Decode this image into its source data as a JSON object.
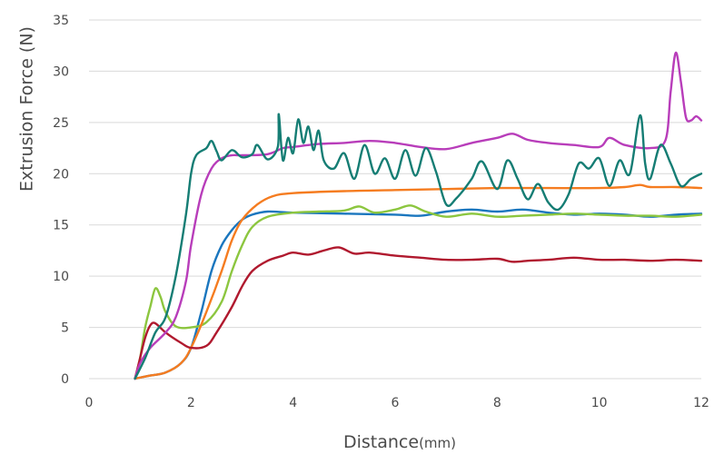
{
  "chart_data": {
    "type": "line",
    "xlabel": "Distance",
    "xlabel_unit": "(mm)",
    "ylabel": "Extrusion Force (N)",
    "xlim": [
      0,
      12
    ],
    "ylim": [
      0,
      35
    ],
    "xticks": [
      0,
      2,
      4,
      6,
      8,
      10,
      12
    ],
    "yticks": [
      0,
      5,
      10,
      15,
      20,
      25,
      30,
      35
    ],
    "grid": "horizontal",
    "legend": "none",
    "series": [
      {
        "color": "#1a76be",
        "points": [
          [
            0.9,
            0
          ],
          [
            1.2,
            0.3
          ],
          [
            1.5,
            0.6
          ],
          [
            1.8,
            1.5
          ],
          [
            2.0,
            3
          ],
          [
            2.2,
            6.5
          ],
          [
            2.4,
            10.5
          ],
          [
            2.6,
            13
          ],
          [
            2.8,
            14.5
          ],
          [
            3.0,
            15.5
          ],
          [
            3.2,
            16
          ],
          [
            3.5,
            16.3
          ],
          [
            4.0,
            16.2
          ],
          [
            5.0,
            16.1
          ],
          [
            6.0,
            16.0
          ],
          [
            6.5,
            15.9
          ],
          [
            7.0,
            16.3
          ],
          [
            7.5,
            16.5
          ],
          [
            8.0,
            16.3
          ],
          [
            8.5,
            16.5
          ],
          [
            9.0,
            16.2
          ],
          [
            9.5,
            16.0
          ],
          [
            10.0,
            16.1
          ],
          [
            10.5,
            16.0
          ],
          [
            11.0,
            15.8
          ],
          [
            11.5,
            16.0
          ],
          [
            12.0,
            16.1
          ]
        ]
      },
      {
        "color": "#8cc63f",
        "points": [
          [
            0.9,
            0
          ],
          [
            1.0,
            2
          ],
          [
            1.1,
            5
          ],
          [
            1.2,
            7
          ],
          [
            1.3,
            8.8
          ],
          [
            1.4,
            8
          ],
          [
            1.5,
            6.5
          ],
          [
            1.7,
            5.1
          ],
          [
            2.0,
            5
          ],
          [
            2.3,
            5.5
          ],
          [
            2.6,
            7.5
          ],
          [
            2.8,
            10.5
          ],
          [
            3.0,
            13
          ],
          [
            3.2,
            14.8
          ],
          [
            3.5,
            15.8
          ],
          [
            4.0,
            16.2
          ],
          [
            4.5,
            16.3
          ],
          [
            5.0,
            16.4
          ],
          [
            5.3,
            16.8
          ],
          [
            5.6,
            16.2
          ],
          [
            6.0,
            16.5
          ],
          [
            6.3,
            16.9
          ],
          [
            6.6,
            16.3
          ],
          [
            7.0,
            15.8
          ],
          [
            7.5,
            16.1
          ],
          [
            8.0,
            15.8
          ],
          [
            8.5,
            15.9
          ],
          [
            9.0,
            16.0
          ],
          [
            9.5,
            16.1
          ],
          [
            10.0,
            16.0
          ],
          [
            10.5,
            15.9
          ],
          [
            11.0,
            15.9
          ],
          [
            11.5,
            15.8
          ],
          [
            12.0,
            16.0
          ]
        ]
      },
      {
        "color": "#f57c20",
        "points": [
          [
            0.9,
            0
          ],
          [
            1.2,
            0.3
          ],
          [
            1.5,
            0.6
          ],
          [
            1.8,
            1.5
          ],
          [
            2.0,
            3
          ],
          [
            2.3,
            6.5
          ],
          [
            2.6,
            10.5
          ],
          [
            2.8,
            13.5
          ],
          [
            3.0,
            15.5
          ],
          [
            3.3,
            17
          ],
          [
            3.6,
            17.8
          ],
          [
            4.0,
            18.1
          ],
          [
            5.0,
            18.3
          ],
          [
            6.0,
            18.4
          ],
          [
            7.0,
            18.5
          ],
          [
            8.0,
            18.6
          ],
          [
            9.0,
            18.6
          ],
          [
            10.0,
            18.6
          ],
          [
            10.5,
            18.7
          ],
          [
            10.8,
            18.9
          ],
          [
            11.0,
            18.7
          ],
          [
            11.5,
            18.7
          ],
          [
            12.0,
            18.6
          ]
        ]
      },
      {
        "color": "#b0192e",
        "points": [
          [
            0.9,
            0
          ],
          [
            1.0,
            2
          ],
          [
            1.1,
            4
          ],
          [
            1.2,
            5.2
          ],
          [
            1.3,
            5.4
          ],
          [
            1.5,
            4.5
          ],
          [
            1.8,
            3.5
          ],
          [
            2.0,
            3
          ],
          [
            2.3,
            3.2
          ],
          [
            2.5,
            4.5
          ],
          [
            2.8,
            7
          ],
          [
            3.0,
            9
          ],
          [
            3.2,
            10.5
          ],
          [
            3.5,
            11.5
          ],
          [
            3.8,
            12
          ],
          [
            4.0,
            12.3
          ],
          [
            4.3,
            12.1
          ],
          [
            4.6,
            12.5
          ],
          [
            4.9,
            12.8
          ],
          [
            5.2,
            12.2
          ],
          [
            5.5,
            12.3
          ],
          [
            6.0,
            12
          ],
          [
            6.5,
            11.8
          ],
          [
            7.0,
            11.6
          ],
          [
            7.5,
            11.6
          ],
          [
            8.0,
            11.7
          ],
          [
            8.3,
            11.4
          ],
          [
            8.6,
            11.5
          ],
          [
            9.0,
            11.6
          ],
          [
            9.5,
            11.8
          ],
          [
            10.0,
            11.6
          ],
          [
            10.5,
            11.6
          ],
          [
            11.0,
            11.5
          ],
          [
            11.5,
            11.6
          ],
          [
            12.0,
            11.5
          ]
        ]
      },
      {
        "color": "#b83dba",
        "points": [
          [
            0.9,
            0
          ],
          [
            1.0,
            1.5
          ],
          [
            1.2,
            3
          ],
          [
            1.5,
            4.5
          ],
          [
            1.7,
            6
          ],
          [
            1.9,
            9.5
          ],
          [
            2.0,
            13
          ],
          [
            2.2,
            18
          ],
          [
            2.4,
            20.5
          ],
          [
            2.6,
            21.5
          ],
          [
            2.8,
            21.8
          ],
          [
            3.0,
            21.8
          ],
          [
            3.5,
            21.9
          ],
          [
            3.8,
            22.5
          ],
          [
            4.0,
            22.6
          ],
          [
            4.5,
            22.9
          ],
          [
            5.0,
            23
          ],
          [
            5.5,
            23.2
          ],
          [
            6.0,
            23
          ],
          [
            6.5,
            22.6
          ],
          [
            7.0,
            22.4
          ],
          [
            7.5,
            23
          ],
          [
            8.0,
            23.5
          ],
          [
            8.3,
            23.9
          ],
          [
            8.6,
            23.3
          ],
          [
            9.0,
            23
          ],
          [
            9.5,
            22.8
          ],
          [
            10.0,
            22.6
          ],
          [
            10.2,
            23.5
          ],
          [
            10.5,
            22.8
          ],
          [
            11.0,
            22.5
          ],
          [
            11.3,
            23.3
          ],
          [
            11.4,
            28
          ],
          [
            11.5,
            31.8
          ],
          [
            11.6,
            29
          ],
          [
            11.7,
            25.5
          ],
          [
            11.8,
            25.2
          ],
          [
            11.9,
            25.6
          ],
          [
            12.0,
            25.2
          ]
        ]
      },
      {
        "color": "#157d74",
        "points": [
          [
            0.9,
            0
          ],
          [
            1.1,
            2
          ],
          [
            1.3,
            4.5
          ],
          [
            1.5,
            6
          ],
          [
            1.7,
            10
          ],
          [
            1.9,
            16
          ],
          [
            2.0,
            20
          ],
          [
            2.1,
            21.8
          ],
          [
            2.3,
            22.5
          ],
          [
            2.4,
            23.2
          ],
          [
            2.5,
            22.2
          ],
          [
            2.6,
            21.3
          ],
          [
            2.8,
            22.3
          ],
          [
            3.0,
            21.6
          ],
          [
            3.2,
            21.9
          ],
          [
            3.3,
            22.8
          ],
          [
            3.5,
            21.4
          ],
          [
            3.7,
            22.6
          ],
          [
            3.72,
            25.8
          ],
          [
            3.8,
            21.3
          ],
          [
            3.9,
            23.5
          ],
          [
            4.0,
            22
          ],
          [
            4.1,
            25.3
          ],
          [
            4.2,
            23
          ],
          [
            4.3,
            24.6
          ],
          [
            4.4,
            22.3
          ],
          [
            4.5,
            24.2
          ],
          [
            4.6,
            21.3
          ],
          [
            4.8,
            20.5
          ],
          [
            5.0,
            22
          ],
          [
            5.2,
            19.5
          ],
          [
            5.4,
            22.8
          ],
          [
            5.6,
            20
          ],
          [
            5.8,
            21.5
          ],
          [
            6.0,
            19.5
          ],
          [
            6.2,
            22.3
          ],
          [
            6.4,
            19.8
          ],
          [
            6.6,
            22.5
          ],
          [
            6.8,
            20.2
          ],
          [
            7.0,
            17
          ],
          [
            7.2,
            17.6
          ],
          [
            7.5,
            19.5
          ],
          [
            7.7,
            21.2
          ],
          [
            8.0,
            18.5
          ],
          [
            8.2,
            21.3
          ],
          [
            8.4,
            19.5
          ],
          [
            8.6,
            17.5
          ],
          [
            8.8,
            19
          ],
          [
            9.0,
            17.2
          ],
          [
            9.2,
            16.5
          ],
          [
            9.4,
            18
          ],
          [
            9.6,
            21
          ],
          [
            9.8,
            20.5
          ],
          [
            10.0,
            21.5
          ],
          [
            10.2,
            18.8
          ],
          [
            10.4,
            21.3
          ],
          [
            10.6,
            20
          ],
          [
            10.8,
            25.7
          ],
          [
            10.9,
            21
          ],
          [
            11.0,
            19.5
          ],
          [
            11.2,
            22.8
          ],
          [
            11.4,
            21
          ],
          [
            11.6,
            18.8
          ],
          [
            11.8,
            19.5
          ],
          [
            12.0,
            20
          ]
        ]
      }
    ]
  }
}
